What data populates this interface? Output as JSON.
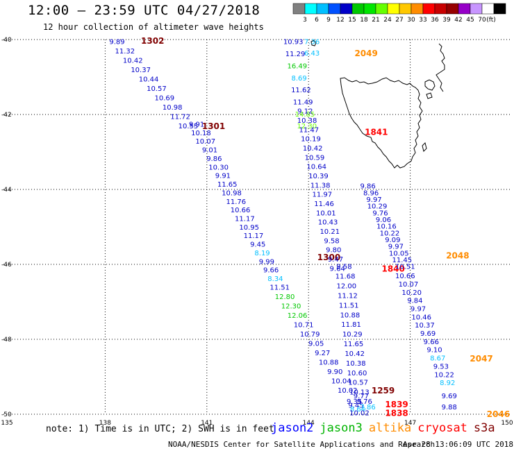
{
  "title": "12:00 – 23:59 UTC 04/27/2018",
  "subtitle": "12 hour collection of altimeter wave heights",
  "colorbar": {
    "colors": [
      "#808080",
      "#00ffff",
      "#00bfff",
      "#0050ff",
      "#0000c8",
      "#00c800",
      "#00e600",
      "#66ff00",
      "#ffff00",
      "#ffc800",
      "#ff8c00",
      "#ff0000",
      "#c80000",
      "#960000",
      "#9600c8",
      "#c896ff",
      "#ffffff",
      "#000000"
    ],
    "labels": [
      "3",
      "6",
      "9",
      "12",
      "15",
      "18",
      "21",
      "24",
      "27",
      "30",
      "33",
      "36",
      "39",
      "42",
      "45",
      "70",
      "(ft)"
    ]
  },
  "axes": {
    "lon_ticks": [
      "135",
      "138",
      "141",
      "144",
      "147",
      "150"
    ],
    "lat_ticks": [
      "-40",
      "-42",
      "-44",
      "-46",
      "-48",
      "-50"
    ],
    "lon_range": [
      135,
      150
    ],
    "lat_range": [
      -50,
      -40
    ],
    "lat_grid": [
      -40,
      -42,
      -44,
      -46,
      -48,
      -50
    ],
    "lon_grid": [
      138,
      141,
      144,
      147
    ]
  },
  "tracks": [
    {
      "satellite": "jason2",
      "time": "1302",
      "time_color": "#800000",
      "lon0": 138.35,
      "lat0": -40.05,
      "lon1": 140.45,
      "lat1": -42.3,
      "values": [
        "9.89",
        "11.32",
        "10.42",
        "10.37",
        "10.44",
        "10.57",
        "10.69",
        "10.98",
        "11.72",
        "10.55"
      ],
      "colors": [
        "#0000c8",
        "#0000c8",
        "#0000c8",
        "#0000c8",
        "#0000c8",
        "#0000c8",
        "#0000c8",
        "#0000c8",
        "#0000c8",
        "#0000c8"
      ]
    },
    {
      "satellite": "jason2",
      "time": "1301",
      "time_color": "#800000",
      "lon0": 140.7,
      "lat0": -42.25,
      "lon1": 143.15,
      "lat1": -46.6,
      "values": [
        "9.91",
        "10.18",
        "10.07",
        "9.01",
        "9.86",
        "10.30",
        "9.91",
        "11.65",
        "10.98",
        "11.76",
        "10.66",
        "11.17",
        "10.95",
        "11.17",
        "9.45",
        "8.19",
        "9.99",
        "9.66",
        "8.34",
        "11.51"
      ],
      "colors": [
        "#0000c8",
        "#0000c8",
        "#0000c8",
        "#0000c8",
        "#0000c8",
        "#0000c8",
        "#0000c8",
        "#0000c8",
        "#0000c8",
        "#0000c8",
        "#0000c8",
        "#0000c8",
        "#0000c8",
        "#0000c8",
        "#0000c8",
        "#00bfff",
        "#0000c8",
        "#0000c8",
        "#00bfff",
        "#0000c8"
      ]
    },
    {
      "satellite": "jason2",
      "time": "1300",
      "time_color": "#800000",
      "lon0": 143.3,
      "lat0": -46.85,
      "lon1": 145.15,
      "lat1": -49.35,
      "values": [
        "12.80",
        "12.30",
        "12.06",
        "10.71",
        "10.79",
        "9.05",
        "9.27",
        "10.88",
        "9.90",
        "10.04",
        "10.02"
      ],
      "colors": [
        "#00c800",
        "#00c800",
        "#00c800",
        "#0000c8",
        "#0000c8",
        "#0000c8",
        "#0000c8",
        "#0000c8",
        "#0000c8",
        "#0000c8",
        "#0000c8"
      ]
    },
    {
      "satellite": "jason2",
      "time": "1259",
      "time_color": "#800000",
      "lon0": 145.35,
      "lat0": -49.65,
      "lon1": 145.5,
      "lat1": -49.95,
      "values": [
        "9.35",
        "9.45",
        "8.64",
        "10.02"
      ],
      "colors": [
        "#0000c8",
        "#0000c8",
        "#00bfff",
        "#0000c8"
      ]
    },
    {
      "satellite": "jason3",
      "time": "2049",
      "time_color": "#ff8c00",
      "lon0": 143.55,
      "lat0": -40.05,
      "lon1": 143.95,
      "lat1": -42.3,
      "values": [
        "10.93",
        "11.29",
        "16.49",
        "8.69",
        "11.62",
        "11.49",
        "14.85",
        "12.30"
      ],
      "colors": [
        "#0000c8",
        "#0000c8",
        "#00c800",
        "#00bfff",
        "#0000c8",
        "#0000c8",
        "#66ff00",
        "#66ff00"
      ]
    },
    {
      "satellite": "jason3",
      "time": "",
      "time_color": "#ff8c00",
      "lon0": 144.1,
      "lat0": -40.05,
      "lon1": 144.1,
      "lat1": -40.35,
      "values": [
        "7.36",
        "6.43"
      ],
      "colors": [
        "#00bfff",
        "#00bfff"
      ]
    },
    {
      "satellite": "jason3",
      "time": "1841",
      "time_color": "#ff0000",
      "lon0": 143.9,
      "lat0": -41.9,
      "lon1": 144.85,
      "lat1": -46.1,
      "values": [
        "9.12",
        "10.38",
        "11.47",
        "10.19",
        "10.42",
        "10.59",
        "10.64",
        "10.39",
        "11.38",
        "11.97",
        "11.46",
        "10.01",
        "10.43",
        "10.21",
        "9.58",
        "9.80",
        "9.47",
        "9.64"
      ],
      "colors": [
        "#0000c8",
        "#0000c8",
        "#0000c8",
        "#0000c8",
        "#0000c8",
        "#0000c8",
        "#0000c8",
        "#0000c8",
        "#0000c8",
        "#0000c8",
        "#0000c8",
        "#0000c8",
        "#0000c8",
        "#0000c8",
        "#0000c8",
        "#0000c8",
        "#0000c8",
        "#0000c8"
      ]
    },
    {
      "satellite": "jason3",
      "time": "1840",
      "time_color": "#ff0000",
      "lon0": 145.05,
      "lat0": -46.05,
      "lon1": 145.5,
      "lat1": -49.4,
      "values": [
        "9.58",
        "11.68",
        "12.00",
        "11.12",
        "11.51",
        "10.88",
        "11.81",
        "10.29",
        "11.65",
        "10.42",
        "10.38",
        "10.60",
        "10.57",
        "10.13"
      ],
      "colors": [
        "#0000c8",
        "#0000c8",
        "#0000c8",
        "#0000c8",
        "#0000c8",
        "#0000c8",
        "#0000c8",
        "#0000c8",
        "#0000c8",
        "#0000c8",
        "#0000c8",
        "#0000c8",
        "#0000c8",
        "#0000c8"
      ]
    },
    {
      "satellite": "jason3",
      "time": "1839",
      "time_color": "#ff0000",
      "lon0": 145.55,
      "lat0": -49.5,
      "lon1": 145.75,
      "lat1": -49.8,
      "values": [
        "9.77",
        "9.76",
        "7.86"
      ],
      "colors": [
        "#0000c8",
        "#0000c8",
        "#00bfff"
      ]
    },
    {
      "satellite": "jason3",
      "time": "1838",
      "time_color": "#ff0000",
      "lon0": 0,
      "lat0": 0,
      "lon1": 0,
      "lat1": 0,
      "values": [],
      "colors": []
    },
    {
      "satellite": "altika",
      "time": "2048",
      "time_color": "#ff8c00",
      "lon0": 145.75,
      "lat0": -43.9,
      "lon1": 146.85,
      "lat1": -46.05,
      "values": [
        "9.86",
        "8.96",
        "9.97",
        "10.29",
        "9.76",
        "9.06",
        "10.16",
        "10.22",
        "9.09",
        "9.97",
        "10.05",
        "11.45",
        "10.51"
      ],
      "colors": [
        "#0000c8",
        "#0000c8",
        "#0000c8",
        "#0000c8",
        "#0000c8",
        "#0000c8",
        "#0000c8",
        "#0000c8",
        "#0000c8",
        "#0000c8",
        "#0000c8",
        "#0000c8",
        "#0000c8"
      ]
    },
    {
      "satellite": "altika",
      "time": "2047",
      "time_color": "#ff8c00",
      "lon0": 146.85,
      "lat0": -46.3,
      "lon1": 148.1,
      "lat1": -49.15,
      "values": [
        "10.66",
        "10.07",
        "10.20",
        "9.84",
        "9.97",
        "10.46",
        "10.37",
        "9.69",
        "9.66",
        "9.10",
        "8.67",
        "9.53",
        "10.22",
        "8.92"
      ],
      "colors": [
        "#0000c8",
        "#0000c8",
        "#0000c8",
        "#0000c8",
        "#0000c8",
        "#0000c8",
        "#0000c8",
        "#0000c8",
        "#0000c8",
        "#0000c8",
        "#00bfff",
        "#0000c8",
        "#0000c8",
        "#00bfff"
      ]
    },
    {
      "satellite": "altika",
      "time": "2046",
      "time_color": "#ff8c00",
      "lon0": 148.15,
      "lat0": -49.5,
      "lon1": 148.15,
      "lat1": -49.8,
      "values": [
        "9.69",
        "9.88"
      ],
      "colors": [
        "#0000c8",
        "#0000c8"
      ]
    }
  ],
  "note": "note: 1) Time is in UTC; 2) SWH is in feet",
  "satellites": [
    {
      "name": "jason2",
      "color": "#0000ff"
    },
    {
      "name": "jason3",
      "color": "#00b400"
    },
    {
      "name": "altika",
      "color": "#ff8c00"
    },
    {
      "name": "cryosat",
      "color": "#ff0000"
    },
    {
      "name": "s3a",
      "color": "#800000"
    }
  ],
  "footer_left": "NOAA/NESDIS Center for Satellite Applications and Research",
  "footer_right": "Apr 28 13:06:09 UTC 2018"
}
